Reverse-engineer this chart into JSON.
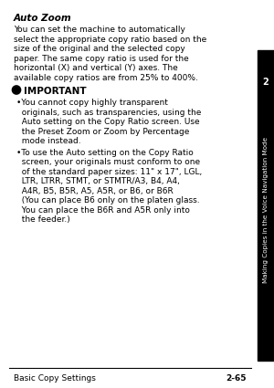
{
  "bg_color": "#ffffff",
  "title": "Auto Zoom",
  "body_text": "You can set the machine to automatically select the appropriate copy ratio based on the size of the original and the selected copy paper. The same copy ratio is used for the horizontal (X) and vertical (Y) axes. The available copy ratios are from 25% to 400%.",
  "important_label": "IMPORTANT",
  "bullet1": "You cannot copy highly transparent originals, such as transparencies, using the Auto setting on the Copy Ratio screen. Use the Preset Zoom or Zoom by Percentage mode instead.",
  "bullet2": "To use the Auto setting on the Copy Ratio screen, your originals must conform to one of the standard paper sizes: 11\" x 17\", LGL, LTR, LTRR, STMT, or STMTR/A3, B4, A4, A4R, B5, B5R, A5, A5R, or B6, or B6R (You can place B6 only on the platen glass. You can place the B6R and A5R only into the feeder.)",
  "sidebar_text": "Making Copies in the Voice Navigation Mode",
  "sidebar_num": "2",
  "footer_left": "Basic Copy Settings",
  "footer_right": "2-65",
  "text_color": "#000000",
  "sidebar_bg": "#000000",
  "sidebar_text_color": "#ffffff",
  "title_fontsize": 7.5,
  "body_fontsize": 6.5,
  "important_fontsize": 7.5,
  "footer_fontsize": 6.5
}
